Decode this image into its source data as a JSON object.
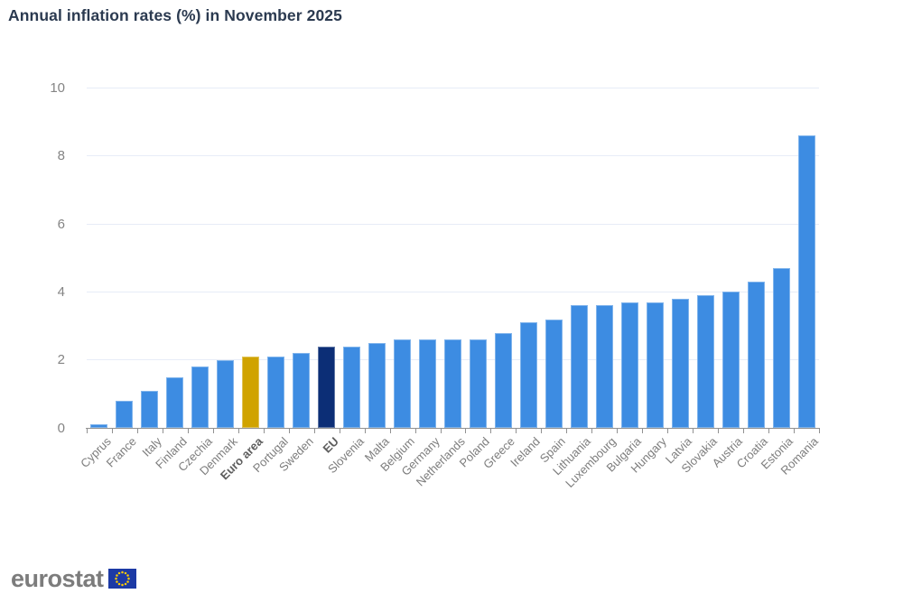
{
  "header": {
    "title": "Annual inflation rates (%) in November 2025"
  },
  "chart_data": {
    "type": "bar",
    "title": "Annual inflation rates (%) in November 2025",
    "categories": [
      "Cyprus",
      "France",
      "Italy",
      "Finland",
      "Czechia",
      "Denmark",
      "Euro area",
      "Portugal",
      "Sweden",
      "EU",
      "Slovenia",
      "Malta",
      "Belgium",
      "Germany",
      "Netherlands",
      "Poland",
      "Greece",
      "Ireland",
      "Spain",
      "Lithuania",
      "Luxembourg",
      "Bulgaria",
      "Hungary",
      "Latvia",
      "Slovakia",
      "Austria",
      "Croatia",
      "Estonia",
      "Romania"
    ],
    "values": [
      0.1,
      0.8,
      1.1,
      1.5,
      1.8,
      2.0,
      2.1,
      2.1,
      2.2,
      2.4,
      2.4,
      2.5,
      2.6,
      2.6,
      2.6,
      2.6,
      2.8,
      3.1,
      3.2,
      3.6,
      3.6,
      3.7,
      3.7,
      3.8,
      3.9,
      4.0,
      4.3,
      4.7,
      8.6
    ],
    "bold_categories": [
      "Euro area",
      "EU"
    ],
    "colors": {
      "default": "#3d8ce2",
      "Euro area": "#d0a300",
      "EU": "#0c2e76"
    },
    "xlabel": "",
    "ylabel": "",
    "ylim": [
      0,
      10
    ],
    "yticks": [
      "0",
      "2",
      "4",
      "6",
      "8",
      "10"
    ],
    "grid": true,
    "legend": "none"
  },
  "axis_colors": {
    "grid": "#e7ecf7",
    "axis": "#919191",
    "tick_label": "#848484",
    "category_label": "#7d7d7d"
  },
  "footer": {
    "logo_text": "eurostat",
    "flag_blue": "#1c3aa5",
    "star_yellow": "#ffcc00"
  }
}
